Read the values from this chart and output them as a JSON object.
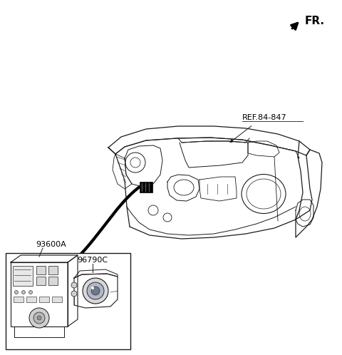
{
  "bg_color": "#ffffff",
  "line_color": "#1a1a1a",
  "fr_label": "FR.",
  "ref_label": "REF.84-847",
  "label_93600A": "93600A",
  "label_96790C": "96790C"
}
